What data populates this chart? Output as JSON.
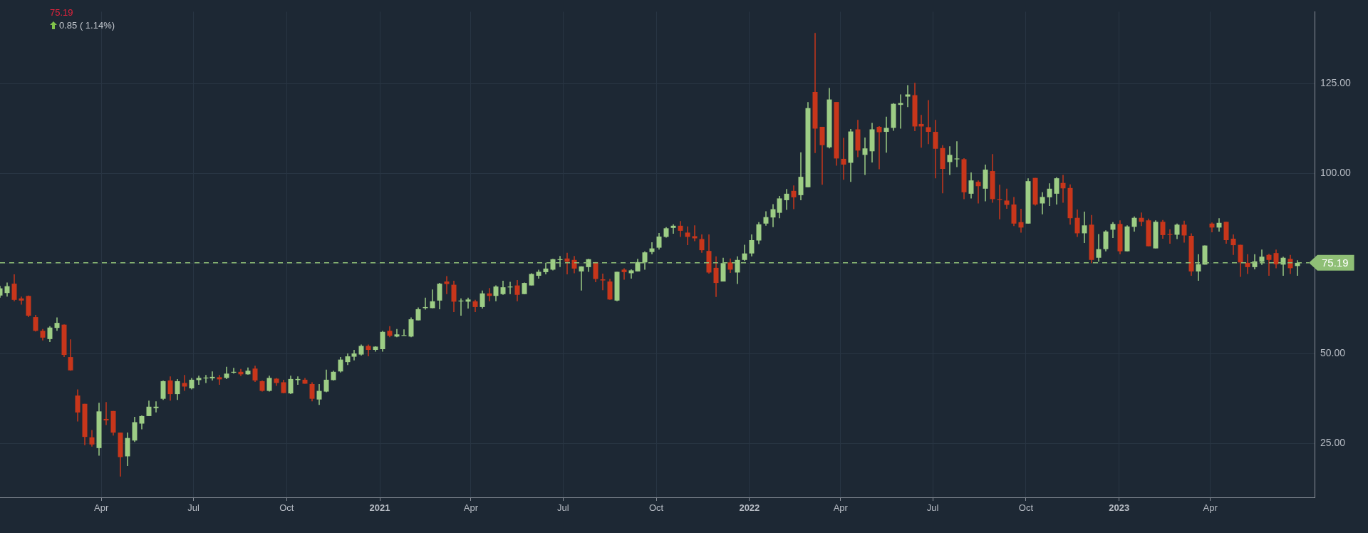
{
  "chart_data": {
    "type": "candlestick",
    "subtitle": "75.19",
    "annotations": [
      "0.85 ( 1.14%)"
    ],
    "x": [
      "2019-12-23",
      "2019-12-30",
      "2020-01-06",
      "2020-01-13",
      "2020-01-20",
      "2020-01-27",
      "2020-02-03",
      "2020-02-10",
      "2020-02-17",
      "2020-02-24",
      "2020-03-02",
      "2020-03-09",
      "2020-03-16",
      "2020-03-23",
      "2020-03-30",
      "2020-04-06",
      "2020-04-13",
      "2020-04-20",
      "2020-04-27",
      "2020-05-04",
      "2020-05-11",
      "2020-05-18",
      "2020-05-25",
      "2020-06-01",
      "2020-06-08",
      "2020-06-15",
      "2020-06-22",
      "2020-06-29",
      "2020-07-06",
      "2020-07-13",
      "2020-07-20",
      "2020-07-27",
      "2020-08-03",
      "2020-08-10",
      "2020-08-17",
      "2020-08-24",
      "2020-08-31",
      "2020-09-07",
      "2020-09-14",
      "2020-09-21",
      "2020-09-28",
      "2020-10-05",
      "2020-10-12",
      "2020-10-19",
      "2020-10-26",
      "2020-11-02",
      "2020-11-09",
      "2020-11-16",
      "2020-11-23",
      "2020-11-30",
      "2020-12-07",
      "2020-12-14",
      "2020-12-21",
      "2020-12-28",
      "2021-01-04",
      "2021-01-11",
      "2021-01-18",
      "2021-01-25",
      "2021-02-01",
      "2021-02-08",
      "2021-02-15",
      "2021-02-22",
      "2021-03-01",
      "2021-03-08",
      "2021-03-15",
      "2021-03-22",
      "2021-03-29",
      "2021-04-05",
      "2021-04-12",
      "2021-04-19",
      "2021-04-26",
      "2021-05-03",
      "2021-05-10",
      "2021-05-17",
      "2021-05-24",
      "2021-05-31",
      "2021-06-07",
      "2021-06-14",
      "2021-06-21",
      "2021-06-28",
      "2021-07-05",
      "2021-07-12",
      "2021-07-19",
      "2021-07-26",
      "2021-08-02",
      "2021-08-09",
      "2021-08-16",
      "2021-08-23",
      "2021-08-30",
      "2021-09-06",
      "2021-09-13",
      "2021-09-20",
      "2021-09-27",
      "2021-10-04",
      "2021-10-11",
      "2021-10-18",
      "2021-10-25",
      "2021-11-01",
      "2021-11-08",
      "2021-11-15",
      "2021-11-22",
      "2021-11-29",
      "2021-12-06",
      "2021-12-13",
      "2021-12-20",
      "2021-12-27",
      "2022-01-03",
      "2022-01-10",
      "2022-01-17",
      "2022-01-24",
      "2022-01-31",
      "2022-02-07",
      "2022-02-14",
      "2022-02-21",
      "2022-02-28",
      "2022-03-07",
      "2022-03-14",
      "2022-03-21",
      "2022-03-28",
      "2022-04-04",
      "2022-04-11",
      "2022-04-18",
      "2022-04-25",
      "2022-05-02",
      "2022-05-09",
      "2022-05-16",
      "2022-05-23",
      "2022-05-30",
      "2022-06-06",
      "2022-06-13",
      "2022-06-20",
      "2022-06-27",
      "2022-07-04",
      "2022-07-11",
      "2022-07-18",
      "2022-07-25",
      "2022-08-01",
      "2022-08-08",
      "2022-08-15",
      "2022-08-22",
      "2022-08-29",
      "2022-09-05",
      "2022-09-12",
      "2022-09-19",
      "2022-09-26",
      "2022-10-03",
      "2022-10-10",
      "2022-10-17",
      "2022-10-24",
      "2022-10-31",
      "2022-11-07",
      "2022-11-14",
      "2022-11-21",
      "2022-11-28",
      "2022-12-05",
      "2022-12-12",
      "2022-12-19",
      "2022-12-26",
      "2023-01-02",
      "2023-01-09",
      "2023-01-16",
      "2023-01-23",
      "2023-01-30",
      "2023-02-06",
      "2023-02-13",
      "2023-02-20",
      "2023-02-27",
      "2023-03-06",
      "2023-03-13",
      "2023-03-20",
      "2023-03-27",
      "2023-04-03",
      "2023-04-10",
      "2023-04-17",
      "2023-04-24",
      "2023-05-01",
      "2023-05-08",
      "2023-05-15",
      "2023-05-22",
      "2023-05-29",
      "2023-06-05",
      "2023-06-12",
      "2023-06-19",
      "2023-06-26"
    ],
    "ohlc": [
      [
        66.1,
        68.8,
        65.5,
        68.1
      ],
      [
        66.8,
        69.7,
        65.8,
        68.7
      ],
      [
        69.4,
        72.0,
        64.5,
        64.9
      ],
      [
        65.3,
        65.8,
        63.6,
        64.7
      ],
      [
        66.0,
        66.1,
        60.1,
        60.5
      ],
      [
        60.1,
        60.7,
        56.1,
        56.3
      ],
      [
        56.3,
        56.8,
        53.6,
        54.4
      ],
      [
        54.0,
        57.6,
        53.2,
        57.2
      ],
      [
        57.1,
        60.0,
        56.3,
        58.5
      ],
      [
        58.0,
        58.1,
        49.0,
        49.6
      ],
      [
        49.0,
        53.9,
        45.2,
        45.3
      ],
      [
        38.3,
        40.0,
        31.1,
        33.6
      ],
      [
        36.0,
        36.0,
        24.5,
        26.8
      ],
      [
        26.7,
        28.7,
        24.1,
        24.7
      ],
      [
        23.7,
        36.3,
        21.6,
        33.9
      ],
      [
        31.8,
        36.5,
        30.1,
        31.4
      ],
      [
        34.0,
        34.0,
        27.2,
        28.0
      ],
      [
        28.0,
        28.0,
        15.8,
        21.2
      ],
      [
        21.4,
        28.0,
        18.7,
        26.5
      ],
      [
        25.8,
        32.4,
        25.4,
        30.9
      ],
      [
        30.5,
        32.8,
        28.9,
        32.6
      ],
      [
        32.6,
        36.9,
        32.6,
        35.2
      ],
      [
        34.8,
        36.7,
        33.6,
        35.2
      ],
      [
        37.4,
        42.5,
        37.1,
        42.3
      ],
      [
        42.5,
        43.6,
        36.9,
        38.7
      ],
      [
        38.7,
        42.9,
        37.1,
        42.3
      ],
      [
        41.8,
        44.0,
        39.6,
        40.8
      ],
      [
        40.3,
        43.2,
        40.0,
        42.7
      ],
      [
        42.6,
        43.8,
        41.3,
        43.2
      ],
      [
        43.1,
        44.0,
        41.8,
        43.3
      ],
      [
        43.1,
        45.0,
        42.5,
        43.5
      ],
      [
        43.4,
        44.0,
        41.3,
        42.8
      ],
      [
        43.2,
        46.3,
        42.9,
        44.4
      ],
      [
        44.7,
        46.0,
        44.4,
        44.9
      ],
      [
        44.9,
        45.7,
        43.7,
        44.2
      ],
      [
        44.2,
        46.1,
        44.1,
        45.2
      ],
      [
        45.8,
        46.6,
        42.1,
        42.5
      ],
      [
        42.3,
        42.5,
        39.4,
        39.6
      ],
      [
        39.6,
        43.8,
        39.4,
        43.2
      ],
      [
        43.0,
        43.2,
        41.0,
        41.8
      ],
      [
        42.0,
        42.7,
        38.9,
        39.0
      ],
      [
        38.9,
        43.8,
        38.7,
        42.9
      ],
      [
        42.6,
        43.6,
        41.3,
        42.9
      ],
      [
        42.7,
        43.2,
        41.6,
        41.6
      ],
      [
        41.5,
        42.0,
        36.7,
        37.4
      ],
      [
        37.2,
        41.5,
        35.7,
        39.6
      ],
      [
        39.4,
        45.5,
        39.2,
        42.7
      ],
      [
        42.6,
        45.2,
        42.5,
        44.9
      ],
      [
        45.0,
        49.0,
        44.7,
        48.3
      ],
      [
        47.6,
        50.0,
        46.8,
        49.2
      ],
      [
        49.1,
        51.0,
        48.1,
        50.0
      ],
      [
        49.7,
        52.5,
        49.4,
        52.1
      ],
      [
        52.1,
        52.5,
        49.2,
        51.0
      ],
      [
        51.0,
        52.0,
        50.5,
        51.9
      ],
      [
        51.2,
        56.3,
        50.5,
        56.0
      ],
      [
        56.3,
        57.6,
        54.5,
        54.9
      ],
      [
        54.7,
        56.8,
        54.5,
        55.3
      ],
      [
        55.0,
        56.7,
        55.0,
        55.1
      ],
      [
        54.7,
        60.0,
        54.5,
        59.5
      ],
      [
        59.2,
        62.8,
        59.2,
        62.3
      ],
      [
        62.6,
        65.5,
        62.2,
        62.9
      ],
      [
        62.6,
        67.8,
        62.6,
        64.5
      ],
      [
        64.7,
        69.6,
        62.3,
        69.4
      ],
      [
        70.0,
        71.5,
        66.5,
        69.3
      ],
      [
        69.1,
        70.2,
        61.5,
        64.4
      ],
      [
        64.7,
        65.3,
        60.5,
        64.7
      ],
      [
        64.4,
        65.5,
        62.5,
        65.0
      ],
      [
        64.5,
        64.9,
        61.5,
        62.9
      ],
      [
        62.9,
        67.5,
        62.5,
        66.7
      ],
      [
        66.7,
        68.2,
        64.5,
        66.0
      ],
      [
        66.0,
        68.9,
        64.5,
        68.6
      ],
      [
        66.5,
        70.2,
        66.3,
        68.4
      ],
      [
        68.5,
        69.9,
        66.5,
        68.6
      ],
      [
        68.9,
        70.4,
        64.5,
        66.3
      ],
      [
        66.5,
        69.7,
        66.5,
        69.6
      ],
      [
        68.9,
        72.3,
        68.9,
        72.1
      ],
      [
        71.6,
        73.3,
        70.8,
        72.7
      ],
      [
        72.6,
        75.2,
        72.0,
        73.6
      ],
      [
        73.3,
        76.3,
        73.1,
        76.2
      ],
      [
        76.0,
        77.1,
        74.0,
        76.2
      ],
      [
        76.4,
        78.0,
        72.0,
        75.5
      ],
      [
        76.0,
        77.1,
        72.3,
        73.6
      ],
      [
        72.8,
        74.2,
        67.5,
        74.2
      ],
      [
        74.0,
        76.3,
        72.7,
        76.2
      ],
      [
        75.4,
        75.4,
        69.8,
        70.7
      ],
      [
        70.6,
        72.2,
        67.6,
        70.3
      ],
      [
        70.0,
        70.7,
        64.9,
        65.0
      ],
      [
        64.7,
        72.7,
        64.5,
        72.7
      ],
      [
        73.3,
        73.7,
        70.5,
        72.6
      ],
      [
        72.3,
        73.4,
        70.8,
        73.1
      ],
      [
        72.8,
        76.3,
        72.8,
        75.4
      ],
      [
        75.3,
        78.4,
        73.3,
        78.1
      ],
      [
        78.2,
        80.9,
        77.6,
        79.2
      ],
      [
        79.4,
        83.5,
        78.9,
        82.5
      ],
      [
        82.4,
        85.1,
        82.2,
        84.8
      ],
      [
        84.9,
        85.9,
        83.3,
        85.5
      ],
      [
        85.5,
        86.8,
        82.4,
        84.1
      ],
      [
        83.6,
        85.3,
        80.1,
        82.4
      ],
      [
        82.6,
        85.6,
        81.2,
        82.0
      ],
      [
        81.8,
        83.1,
        78.0,
        78.7
      ],
      [
        78.5,
        83.1,
        72.2,
        72.5
      ],
      [
        73.8,
        77.0,
        65.7,
        69.6
      ],
      [
        70.0,
        76.6,
        70.0,
        75.1
      ],
      [
        75.3,
        76.4,
        72.4,
        73.3
      ],
      [
        72.5,
        77.0,
        69.3,
        76.0
      ],
      [
        76.0,
        80.2,
        75.7,
        77.8
      ],
      [
        77.8,
        83.1,
        77.0,
        81.5
      ],
      [
        81.4,
        86.5,
        80.4,
        85.9
      ],
      [
        86.1,
        89.5,
        85.5,
        87.9
      ],
      [
        87.8,
        91.5,
        85.1,
        90.1
      ],
      [
        89.1,
        93.8,
        87.6,
        93.1
      ],
      [
        92.6,
        95.7,
        89.9,
        94.4
      ],
      [
        95.2,
        96.7,
        90.1,
        93.4
      ],
      [
        94.0,
        105.9,
        92.6,
        99.1
      ],
      [
        96.2,
        119.9,
        96.2,
        118.2
      ],
      [
        122.7,
        139.1,
        105.7,
        112.5
      ],
      [
        113.0,
        113.0,
        96.9,
        107.9
      ],
      [
        107.3,
        123.8,
        107.0,
        120.6
      ],
      [
        119.9,
        119.9,
        102.2,
        104.2
      ],
      [
        104.1,
        109.9,
        98.3,
        102.5
      ],
      [
        103.0,
        112.4,
        97.7,
        111.7
      ],
      [
        112.3,
        114.9,
        104.6,
        106.4
      ],
      [
        105.2,
        110.0,
        99.6,
        107.0
      ],
      [
        106.2,
        114.1,
        103.1,
        112.3
      ],
      [
        113.0,
        113.2,
        101.2,
        111.5
      ],
      [
        111.6,
        115.8,
        105.8,
        112.7
      ],
      [
        112.7,
        119.6,
        111.9,
        119.4
      ],
      [
        119.1,
        122.0,
        112.5,
        119.6
      ],
      [
        121.4,
        124.6,
        118.5,
        122.0
      ],
      [
        121.8,
        125.2,
        111.8,
        113.1
      ],
      [
        113.8,
        116.3,
        107.2,
        113.1
      ],
      [
        112.9,
        120.4,
        108.2,
        111.6
      ],
      [
        111.6,
        114.9,
        98.7,
        106.9
      ],
      [
        107.1,
        107.9,
        94.5,
        101.3
      ],
      [
        103.2,
        107.6,
        99.6,
        105.2
      ],
      [
        104.0,
        109.0,
        101.8,
        104.2
      ],
      [
        104.0,
        104.3,
        92.9,
        94.8
      ],
      [
        94.4,
        100.3,
        93.1,
        98.1
      ],
      [
        97.7,
        98.1,
        91.7,
        96.5
      ],
      [
        95.8,
        102.5,
        92.3,
        101.1
      ],
      [
        100.7,
        105.4,
        91.9,
        92.9
      ],
      [
        92.9,
        96.9,
        87.3,
        92.7
      ],
      [
        92.5,
        95.8,
        90.2,
        91.3
      ],
      [
        91.4,
        93.5,
        85.4,
        86.1
      ],
      [
        86.5,
        90.2,
        83.6,
        85.0
      ],
      [
        86.1,
        98.7,
        86.1,
        97.9
      ],
      [
        98.8,
        98.8,
        91.1,
        91.4
      ],
      [
        91.7,
        94.8,
        88.7,
        93.5
      ],
      [
        93.4,
        97.3,
        91.0,
        95.8
      ],
      [
        94.4,
        99.0,
        91.4,
        98.7
      ],
      [
        97.4,
        99.6,
        91.9,
        95.9
      ],
      [
        96.0,
        97.0,
        85.8,
        87.6
      ],
      [
        87.7,
        90.0,
        82.4,
        83.4
      ],
      [
        83.4,
        89.4,
        80.7,
        85.6
      ],
      [
        85.8,
        88.5,
        75.1,
        76.0
      ],
      [
        76.6,
        83.2,
        75.5,
        79.0
      ],
      [
        79.0,
        84.2,
        78.4,
        83.9
      ],
      [
        84.4,
        86.5,
        82.1,
        86.0
      ],
      [
        86.0,
        87.0,
        77.6,
        78.4
      ],
      [
        78.4,
        85.6,
        78.4,
        85.3
      ],
      [
        85.2,
        88.1,
        83.9,
        87.7
      ],
      [
        87.7,
        89.2,
        85.4,
        86.6
      ],
      [
        87.0,
        87.5,
        79.8,
        79.8
      ],
      [
        79.2,
        87.0,
        79.2,
        86.6
      ],
      [
        86.6,
        87.1,
        81.9,
        82.9
      ],
      [
        83.2,
        84.5,
        80.5,
        83.1
      ],
      [
        83.0,
        86.1,
        81.8,
        85.8
      ],
      [
        85.8,
        86.9,
        80.8,
        82.8
      ],
      [
        82.7,
        83.4,
        71.6,
        72.8
      ],
      [
        72.8,
        77.6,
        70.2,
        74.8
      ],
      [
        74.7,
        80.0,
        74.7,
        80.0
      ],
      [
        86.1,
        86.4,
        83.7,
        85.0
      ],
      [
        85.0,
        87.6,
        83.9,
        86.3
      ],
      [
        86.6,
        86.6,
        80.5,
        81.5
      ],
      [
        81.9,
        83.1,
        77.4,
        80.1
      ],
      [
        80.2,
        80.2,
        71.3,
        75.3
      ],
      [
        75.2,
        77.6,
        72.1,
        74.0
      ],
      [
        74.0,
        77.6,
        73.4,
        75.6
      ],
      [
        75.5,
        78.9,
        74.6,
        76.9
      ],
      [
        77.4,
        77.7,
        71.6,
        76.0
      ],
      [
        77.9,
        78.9,
        73.7,
        74.8
      ],
      [
        74.7,
        76.9,
        71.6,
        76.6
      ],
      [
        76.3,
        77.4,
        72.1,
        73.7
      ],
      [
        74.3,
        75.9,
        71.6,
        75.19
      ]
    ],
    "colors": [
      "#9dcd85",
      "#9dcd85",
      "#c8361b",
      "#c8361b",
      "#c8361b",
      "#c8361b",
      "#c8361b",
      "#9dcd85",
      "#9dcd85",
      "#c8361b",
      "#c8361b",
      "#c8361b",
      "#c8361b",
      "#c8361b",
      "#9dcd85",
      "#c8361b",
      "#c8361b",
      "#c8361b",
      "#9dcd85",
      "#9dcd85",
      "#9dcd85",
      "#9dcd85",
      "#9dcd85",
      "#9dcd85",
      "#c8361b",
      "#9dcd85",
      "#c8361b",
      "#9dcd85",
      "#9dcd85",
      "#9dcd85",
      "#9dcd85",
      "#c8361b",
      "#9dcd85",
      "#9dcd85",
      "#c8361b",
      "#9dcd85",
      "#c8361b",
      "#c8361b",
      "#9dcd85",
      "#c8361b",
      "#c8361b",
      "#9dcd85",
      "#9dcd85",
      "#c8361b",
      "#c8361b",
      "#9dcd85",
      "#9dcd85",
      "#9dcd85",
      "#9dcd85",
      "#9dcd85",
      "#9dcd85",
      "#9dcd85",
      "#c8361b",
      "#9dcd85",
      "#9dcd85",
      "#c8361b",
      "#9dcd85",
      "#9dcd85",
      "#9dcd85",
      "#9dcd85",
      "#9dcd85",
      "#9dcd85",
      "#9dcd85",
      "#c8361b",
      "#c8361b",
      "#9dcd85",
      "#9dcd85",
      "#c8361b",
      "#9dcd85",
      "#c8361b",
      "#9dcd85",
      "#9dcd85",
      "#9dcd85",
      "#c8361b",
      "#9dcd85",
      "#9dcd85",
      "#9dcd85",
      "#9dcd85",
      "#9dcd85",
      "#9dcd85",
      "#c8361b",
      "#c8361b",
      "#9dcd85",
      "#9dcd85",
      "#c8361b",
      "#c8361b",
      "#c8361b",
      "#9dcd85",
      "#c8361b",
      "#9dcd85",
      "#9dcd85",
      "#9dcd85",
      "#9dcd85",
      "#9dcd85",
      "#9dcd85",
      "#9dcd85",
      "#c8361b",
      "#c8361b",
      "#c8361b",
      "#c8361b",
      "#c8361b",
      "#c8361b",
      "#9dcd85",
      "#c8361b",
      "#9dcd85",
      "#9dcd85",
      "#9dcd85",
      "#9dcd85",
      "#9dcd85",
      "#9dcd85",
      "#9dcd85",
      "#9dcd85",
      "#c8361b",
      "#9dcd85",
      "#9dcd85",
      "#c8361b",
      "#c8361b",
      "#9dcd85",
      "#c8361b",
      "#c8361b",
      "#9dcd85",
      "#c8361b",
      "#9dcd85",
      "#9dcd85",
      "#c8361b",
      "#9dcd85",
      "#9dcd85",
      "#9dcd85",
      "#9dcd85",
      "#c8361b",
      "#c8361b",
      "#c8361b",
      "#c8361b",
      "#c8361b",
      "#9dcd85",
      "#9dcd85",
      "#c8361b",
      "#9dcd85",
      "#c8361b",
      "#9dcd85",
      "#c8361b",
      "#c8361b",
      "#c8361b",
      "#c8361b",
      "#c8361b",
      "#9dcd85",
      "#c8361b",
      "#9dcd85",
      "#9dcd85",
      "#9dcd85",
      "#c8361b",
      "#c8361b",
      "#c8361b",
      "#9dcd85",
      "#c8361b",
      "#9dcd85",
      "#9dcd85",
      "#9dcd85",
      "#c8361b",
      "#9dcd85",
      "#9dcd85",
      "#c8361b",
      "#c8361b",
      "#9dcd85",
      "#c8361b",
      "#c8361b",
      "#9dcd85",
      "#c8361b",
      "#c8361b",
      "#9dcd85",
      "#9dcd85",
      "#c8361b",
      "#9dcd85",
      "#c8361b",
      "#c8361b",
      "#c8361b",
      "#c8361b",
      "#9dcd85",
      "#9dcd85",
      "#c8361b",
      "#c8361b",
      "#9dcd85",
      "#c8361b",
      "#9dcd85"
    ],
    "xlim": [
      "2019-12-23",
      "2023-07-13"
    ],
    "xticks": [
      {
        "value": "2020-04-01",
        "label": "Apr"
      },
      {
        "value": "2020-07-01",
        "label": "Jul"
      },
      {
        "value": "2020-10-01",
        "label": "Oct"
      },
      {
        "value": "2021-01-01",
        "label": "2021"
      },
      {
        "value": "2021-04-01",
        "label": "Apr"
      },
      {
        "value": "2021-07-01",
        "label": "Jul"
      },
      {
        "value": "2021-10-01",
        "label": "Oct"
      },
      {
        "value": "2022-01-01",
        "label": "2022"
      },
      {
        "value": "2022-04-01",
        "label": "Apr"
      },
      {
        "value": "2022-07-01",
        "label": "Jul"
      },
      {
        "value": "2022-10-01",
        "label": "Oct"
      },
      {
        "value": "2023-01-01",
        "label": "2023"
      },
      {
        "value": "2023-04-01",
        "label": "Apr"
      }
    ],
    "ylim": [
      10,
      145
    ],
    "yticks": [
      {
        "value": 25,
        "label": "25.00"
      },
      {
        "value": 50,
        "label": "50.00"
      },
      {
        "value": 75,
        "label": null
      },
      {
        "value": 100,
        "label": "100.00"
      },
      {
        "value": 125,
        "label": "125.00"
      }
    ],
    "ref_lines": [
      {
        "axis": "y",
        "value": 75.19,
        "label": "75.19",
        "color": "#8fbf76",
        "line_style": "dashed"
      }
    ],
    "grid": true
  }
}
